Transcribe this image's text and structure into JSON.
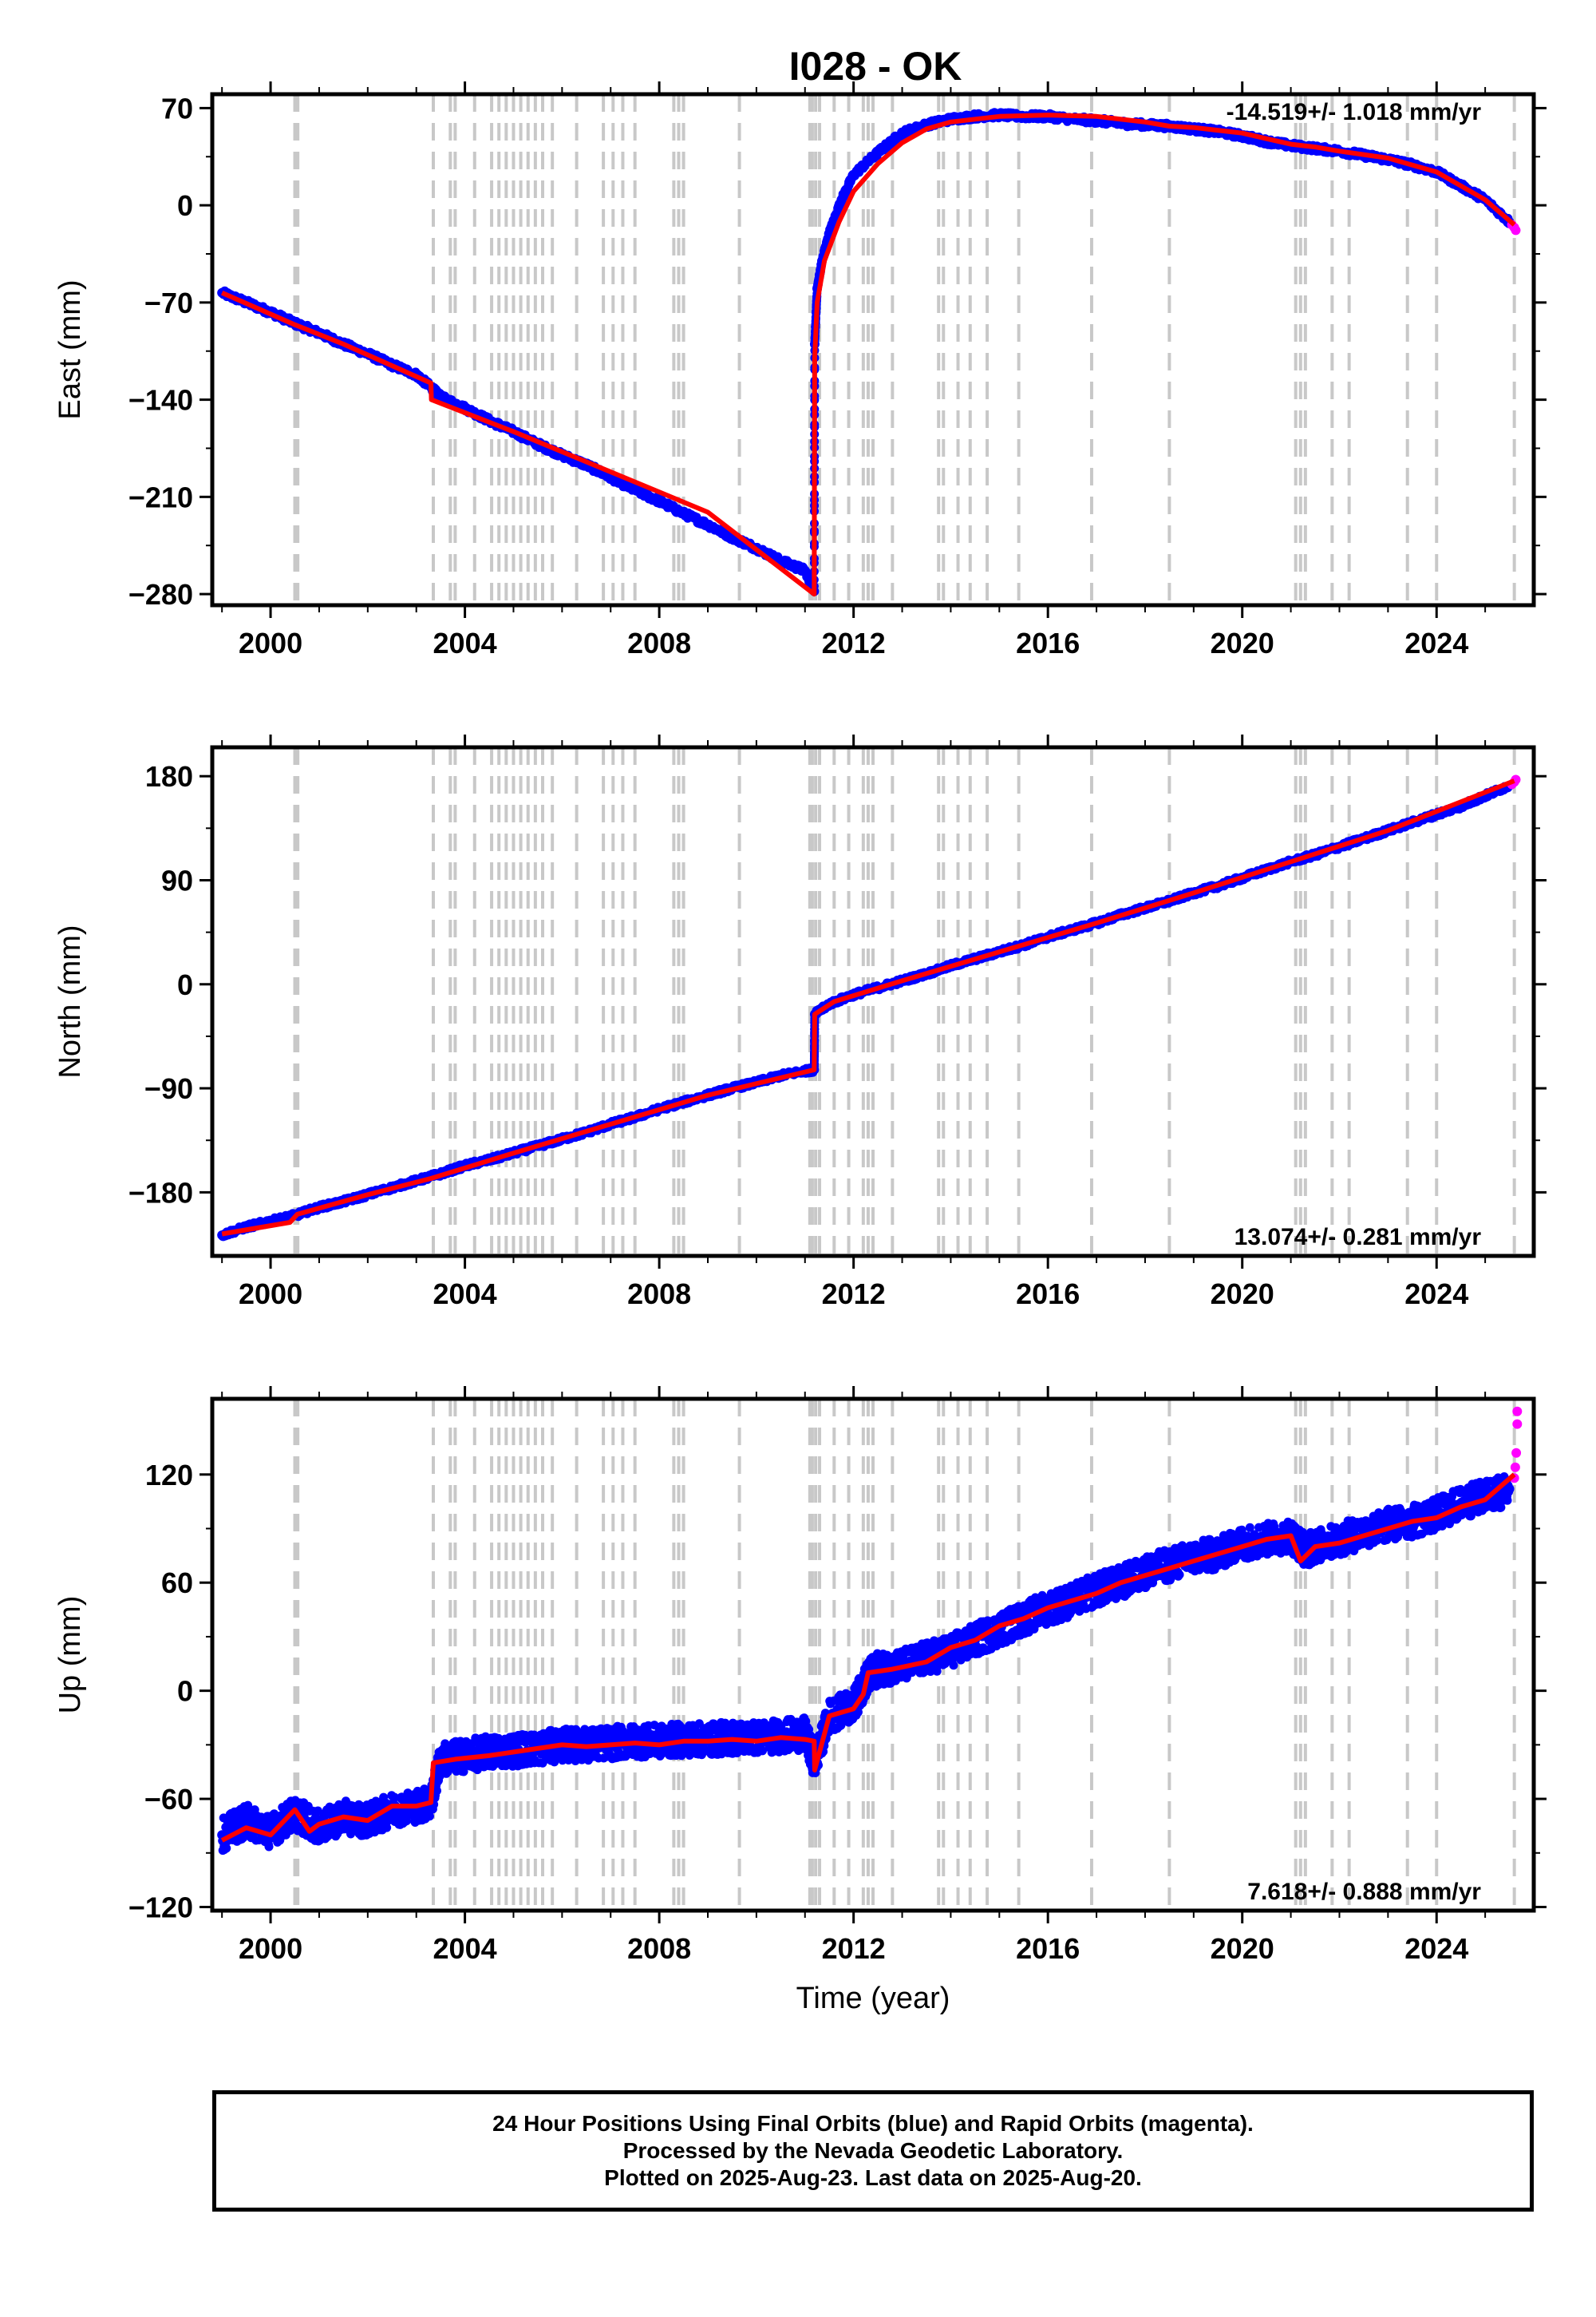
{
  "title": "I028 - OK",
  "colors": {
    "final": "#0000ff",
    "rapid": "#ff00ff",
    "model": "#ff0000",
    "events": "#c8c8c8",
    "frame": "#000000"
  },
  "chart_data": [
    {
      "type": "scatter",
      "component": "east",
      "ylabel": "East (mm)",
      "xlabel": "",
      "xlim": [
        1998.8,
        2026.0
      ],
      "ylim": [
        -288,
        80
      ],
      "yticks": [
        70,
        0,
        -70,
        -140,
        -210,
        -280
      ],
      "xticks": [
        2000,
        2004,
        2008,
        2012,
        2016,
        2020,
        2024
      ],
      "rate_text": "-14.519+/- 1.018 mm/yr",
      "rate_position": "top-right",
      "series": [
        {
          "name": "",
          "color": "#0000ff",
          "x": [
            1999.0,
            1999.5,
            2000.0,
            2000.5,
            2001.0,
            2001.5,
            2002.0,
            2002.5,
            2003.0,
            2003.3,
            2003.5,
            2004.0,
            2004.5,
            2005.0,
            2005.5,
            2006.0,
            2006.5,
            2007.0,
            2007.5,
            2008.0,
            2008.5,
            2009.0,
            2009.5,
            2010.0,
            2010.5,
            2011.0,
            2011.19,
            2011.2,
            2011.25,
            2011.35,
            2011.5,
            2011.75,
            2012.0,
            2012.5,
            2013.0,
            2013.5,
            2014.0,
            2014.5,
            2015.0,
            2015.5,
            2016.0,
            2016.5,
            2017.0,
            2017.5,
            2018.0,
            2018.5,
            2019.0,
            2019.5,
            2020.0,
            2020.5,
            2021.0,
            2021.5,
            2022.0,
            2022.5,
            2023.0,
            2023.5,
            2024.0,
            2024.5,
            2025.0,
            2025.5
          ],
          "y": [
            -63,
            -70,
            -77,
            -85,
            -92,
            -100,
            -107,
            -115,
            -122,
            -131,
            -138,
            -146,
            -155,
            -163,
            -172,
            -180,
            -187,
            -196,
            -205,
            -213,
            -222,
            -230,
            -239,
            -247,
            -256,
            -263,
            -278,
            -100,
            -60,
            -40,
            -20,
            4,
            22,
            38,
            52,
            58,
            62,
            64,
            65,
            64,
            64,
            62,
            61,
            59,
            58,
            57,
            55,
            53,
            50,
            46,
            43,
            41,
            39,
            36,
            33,
            29,
            24,
            14,
            4,
            -12
          ]
        },
        {
          "name": "",
          "color": "#ff00ff",
          "x": [
            2025.55,
            2025.6,
            2025.63
          ],
          "y": [
            -14,
            -16,
            -18
          ]
        }
      ],
      "model": {
        "color": "#ff0000",
        "x": [
          1999.0,
          2000.5,
          2001.5,
          2003.3,
          2003.31,
          2005.0,
          2007.0,
          2009.0,
          2011.19,
          2011.2,
          2011.25,
          2011.4,
          2011.7,
          2012.0,
          2012.5,
          2013.0,
          2013.5,
          2014.0,
          2015.0,
          2016.0,
          2017.0,
          2018.0,
          2018.5,
          2019.0,
          2020.0,
          2020.5,
          2021.0,
          2021.5,
          2022.0,
          2023.0,
          2024.0,
          2024.5,
          2025.0,
          2025.6
        ],
        "y": [
          -63,
          -86,
          -100,
          -128,
          -140,
          -163,
          -192,
          -221,
          -280,
          -110,
          -70,
          -40,
          -12,
          10,
          30,
          45,
          55,
          60,
          64,
          65,
          64,
          60,
          57,
          56,
          52,
          48,
          44,
          42,
          39,
          34,
          24,
          14,
          4,
          -14
        ]
      },
      "event_lines": [
        2000.5,
        2000.53,
        2000.56,
        2003.35,
        2003.7,
        2003.8,
        2004.2,
        2004.55,
        2004.7,
        2004.85,
        2005.0,
        2005.15,
        2005.3,
        2005.45,
        2005.6,
        2005.8,
        2006.3,
        2006.85,
        2007.05,
        2007.25,
        2007.5,
        2008.3,
        2008.4,
        2008.5,
        2009.65,
        2011.1,
        2011.15,
        2011.22,
        2011.3,
        2011.6,
        2011.9,
        2012.2,
        2012.3,
        2012.4,
        2012.8,
        2013.75,
        2013.85,
        2014.15,
        2014.4,
        2014.75,
        2015.4,
        2016.9,
        2018.5,
        2021.1,
        2021.2,
        2021.3,
        2021.85,
        2022.2,
        2023.4,
        2024.0,
        2025.6
      ]
    },
    {
      "type": "scatter",
      "component": "north",
      "ylabel": "North (mm)",
      "xlabel": "",
      "xlim": [
        1998.8,
        2026.0
      ],
      "ylim": [
        -235,
        205
      ],
      "yticks": [
        180,
        90,
        0,
        -90,
        -180
      ],
      "xticks": [
        2000,
        2004,
        2008,
        2012,
        2016,
        2020,
        2024
      ],
      "rate_text": "13.074+/- 0.281 mm/yr",
      "rate_position": "bottom-right",
      "series": [
        {
          "name": "",
          "color": "#0000ff",
          "x": [
            1999.0,
            1999.5,
            2000.0,
            2000.5,
            2001.0,
            2001.5,
            2002.0,
            2002.5,
            2003.0,
            2003.5,
            2004.0,
            2004.5,
            2005.0,
            2005.5,
            2006.0,
            2006.5,
            2007.0,
            2007.5,
            2008.0,
            2008.5,
            2009.0,
            2009.5,
            2010.0,
            2010.5,
            2011.0,
            2011.19,
            2011.2,
            2011.5,
            2012.0,
            2012.5,
            2013.0,
            2013.5,
            2014.0,
            2014.5,
            2015.0,
            2015.5,
            2016.0,
            2016.5,
            2017.0,
            2017.5,
            2018.0,
            2018.5,
            2019.0,
            2019.5,
            2020.0,
            2020.5,
            2021.0,
            2021.5,
            2022.0,
            2022.5,
            2023.0,
            2023.5,
            2024.0,
            2024.5,
            2025.0,
            2025.5
          ],
          "y": [
            -217,
            -210,
            -205,
            -200,
            -193,
            -188,
            -182,
            -176,
            -170,
            -164,
            -157,
            -152,
            -146,
            -140,
            -134,
            -128,
            -121,
            -115,
            -108,
            -102,
            -96,
            -90,
            -85,
            -79,
            -75,
            -74,
            -26,
            -17,
            -9,
            -3,
            3,
            9,
            16,
            22,
            28,
            34,
            41,
            47,
            53,
            60,
            66,
            72,
            79,
            85,
            92,
            99,
            106,
            112,
            119,
            126,
            133,
            140,
            147,
            154,
            163,
            172
          ]
        },
        {
          "name": "",
          "color": "#ff00ff",
          "x": [
            2025.55,
            2025.6,
            2025.63
          ],
          "y": [
            173,
            175,
            177
          ]
        }
      ],
      "model": {
        "color": "#ff0000",
        "x": [
          1999.0,
          2000.4,
          2000.55,
          2002.0,
          2003.3,
          2005.0,
          2007.0,
          2009.0,
          2011.19,
          2011.2,
          2011.6,
          2013.0,
          2015.0,
          2017.0,
          2019.0,
          2021.0,
          2023.0,
          2025.6
        ],
        "y": [
          -216,
          -206,
          -199,
          -182,
          -168,
          -146,
          -121,
          -96,
          -74,
          -26,
          -15,
          3,
          28,
          53,
          79,
          106,
          133,
          176
        ]
      },
      "event_lines": [
        2000.5,
        2000.53,
        2000.56,
        2003.35,
        2003.7,
        2003.8,
        2004.2,
        2004.55,
        2004.7,
        2004.85,
        2005.0,
        2005.15,
        2005.3,
        2005.45,
        2005.6,
        2005.8,
        2006.3,
        2006.85,
        2007.05,
        2007.25,
        2007.5,
        2008.3,
        2008.4,
        2008.5,
        2009.65,
        2011.1,
        2011.15,
        2011.22,
        2011.3,
        2011.6,
        2011.9,
        2012.2,
        2012.3,
        2012.4,
        2012.8,
        2013.75,
        2013.85,
        2014.15,
        2014.4,
        2014.75,
        2015.4,
        2016.9,
        2018.5,
        2021.1,
        2021.2,
        2021.3,
        2021.85,
        2022.2,
        2023.4,
        2024.0,
        2025.6
      ]
    },
    {
      "type": "scatter",
      "component": "up",
      "ylabel": "Up (mm)",
      "xlabel": "Time (year)",
      "xlim": [
        1998.8,
        2026.0
      ],
      "ylim": [
        -122,
        162
      ],
      "yticks": [
        120,
        60,
        0,
        -60,
        -120
      ],
      "xticks": [
        2000,
        2004,
        2008,
        2012,
        2016,
        2020,
        2024
      ],
      "rate_text": "7.618+/- 0.888 mm/yr",
      "rate_position": "bottom-right",
      "series": [
        {
          "name": "",
          "color": "#0000ff",
          "x": [
            1999.0,
            1999.5,
            2000.0,
            2000.5,
            2001.0,
            2001.5,
            2002.0,
            2002.5,
            2003.0,
            2003.3,
            2003.5,
            2004.0,
            2004.5,
            2005.0,
            2005.5,
            2006.0,
            2006.5,
            2007.0,
            2007.5,
            2008.0,
            2008.5,
            2009.0,
            2009.5,
            2010.0,
            2010.5,
            2011.0,
            2011.2,
            2011.5,
            2012.0,
            2012.3,
            2012.5,
            2013.0,
            2013.5,
            2014.0,
            2014.5,
            2015.0,
            2015.5,
            2016.0,
            2016.5,
            2017.0,
            2017.5,
            2018.0,
            2018.5,
            2019.0,
            2019.5,
            2020.0,
            2020.5,
            2021.0,
            2021.3,
            2021.5,
            2022.0,
            2022.5,
            2023.0,
            2023.5,
            2024.0,
            2024.5,
            2025.0,
            2025.5
          ],
          "y": [
            -80,
            -72,
            -78,
            -68,
            -76,
            -70,
            -72,
            -66,
            -64,
            -62,
            -38,
            -36,
            -34,
            -33,
            -32,
            -30,
            -30,
            -29,
            -28,
            -28,
            -27,
            -27,
            -26,
            -26,
            -25,
            -24,
            -40,
            -14,
            -8,
            8,
            12,
            14,
            18,
            22,
            28,
            34,
            40,
            46,
            50,
            56,
            60,
            66,
            70,
            74,
            76,
            82,
            84,
            86,
            78,
            80,
            84,
            88,
            92,
            94,
            98,
            104,
            108,
            112
          ]
        },
        {
          "name": "",
          "color": "#ff00ff",
          "x": [
            2025.6,
            2025.62,
            2025.64,
            2025.66,
            2025.66
          ],
          "y": [
            118,
            124,
            132,
            148,
            155
          ]
        }
      ],
      "model": {
        "color": "#ff0000",
        "x": [
          1999.0,
          1999.5,
          2000.0,
          2000.5,
          2000.8,
          2001.0,
          2001.5,
          2002.0,
          2002.5,
          2003.0,
          2003.3,
          2003.35,
          2003.8,
          2004.5,
          2005.0,
          2005.5,
          2006.0,
          2006.5,
          2007.0,
          2007.5,
          2008.0,
          2008.5,
          2009.0,
          2009.5,
          2010.0,
          2010.5,
          2011.0,
          2011.19,
          2011.2,
          2011.5,
          2012.0,
          2012.2,
          2012.3,
          2012.8,
          2013.5,
          2014.0,
          2014.5,
          2015.0,
          2015.5,
          2016.0,
          2016.5,
          2017.0,
          2017.5,
          2018.0,
          2018.5,
          2019.0,
          2019.5,
          2020.0,
          2020.5,
          2021.0,
          2021.2,
          2021.5,
          2022.0,
          2022.5,
          2023.0,
          2023.5,
          2024.0,
          2024.5,
          2025.0,
          2025.6
        ],
        "y": [
          -83,
          -76,
          -80,
          -66,
          -78,
          -74,
          -70,
          -72,
          -64,
          -64,
          -62,
          -40,
          -38,
          -36,
          -34,
          -32,
          -30,
          -31,
          -30,
          -29,
          -30,
          -28,
          -28,
          -27,
          -28,
          -26,
          -27,
          -28,
          -44,
          -14,
          -10,
          -2,
          10,
          12,
          16,
          24,
          28,
          36,
          40,
          46,
          50,
          54,
          60,
          64,
          68,
          72,
          76,
          80,
          84,
          86,
          72,
          80,
          82,
          86,
          90,
          94,
          96,
          102,
          106,
          120
        ]
      },
      "event_lines": [
        2000.5,
        2000.53,
        2000.56,
        2003.35,
        2003.7,
        2003.8,
        2004.2,
        2004.55,
        2004.7,
        2004.85,
        2005.0,
        2005.15,
        2005.3,
        2005.45,
        2005.6,
        2005.8,
        2006.3,
        2006.85,
        2007.05,
        2007.25,
        2007.5,
        2008.3,
        2008.4,
        2008.5,
        2009.65,
        2011.1,
        2011.15,
        2011.22,
        2011.3,
        2011.6,
        2011.9,
        2012.2,
        2012.3,
        2012.4,
        2012.8,
        2013.75,
        2013.85,
        2014.15,
        2014.4,
        2014.75,
        2015.4,
        2016.9,
        2018.5,
        2021.1,
        2021.2,
        2021.3,
        2021.85,
        2022.2,
        2023.4,
        2024.0,
        2025.6
      ]
    }
  ],
  "caption": {
    "line1": "24 Hour Positions Using Final Orbits (blue) and Rapid Orbits (magenta).",
    "line2": "Processed by the Nevada Geodetic Laboratory.",
    "line3": "Plotted on 2025-Aug-23. Last data on 2025-Aug-20."
  }
}
